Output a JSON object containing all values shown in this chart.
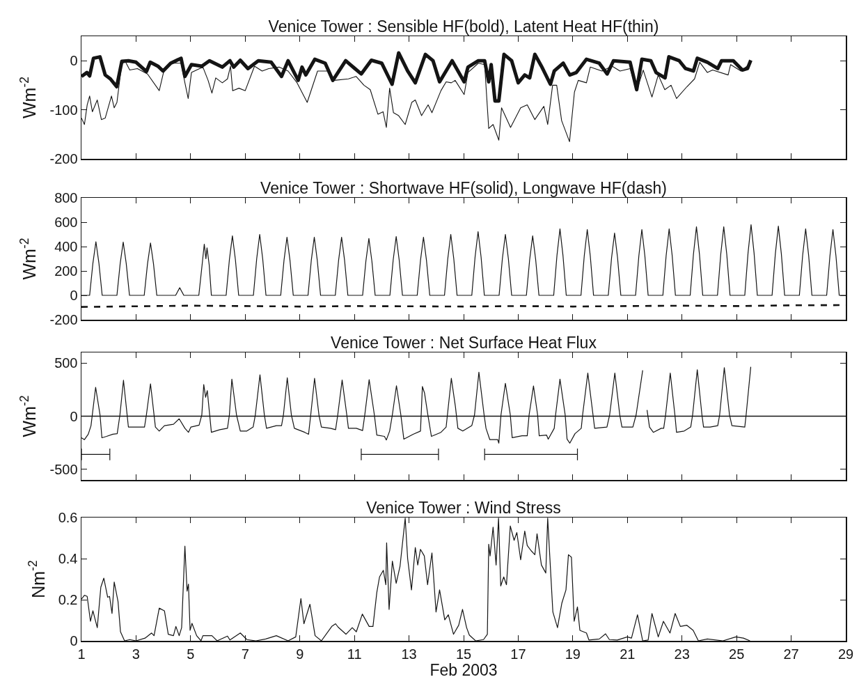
{
  "chart_data": [
    {
      "type": "line",
      "title": "Venice Tower : Sensible HF(bold), Latent Heat HF(thin)",
      "ylabel": "Wm$^{-2}$",
      "xlim": [
        1,
        29
      ],
      "xticks": [
        1,
        3,
        5,
        7,
        9,
        11,
        13,
        15,
        17,
        19,
        21,
        23,
        25,
        27,
        29
      ],
      "ylim": [
        -200,
        50
      ],
      "yticks": [
        -200,
        -100,
        0
      ],
      "grid": false,
      "tick_labels": "y",
      "series": [
        {
          "color": "#141414",
          "x": [
            1.0,
            1.2,
            1.3,
            1.44,
            1.68,
            1.87,
            2.06,
            2.29,
            2.48,
            2.72,
            3.0,
            3.38,
            3.52,
            3.8,
            3.99,
            4.27,
            4.65,
            4.79,
            5.03,
            5.41,
            5.69,
            6.16,
            6.44,
            6.58,
            6.82,
            7.1,
            7.48,
            7.95,
            8.33,
            8.57,
            8.94,
            9.08,
            9.22,
            9.55,
            9.93,
            10.21,
            10.68,
            11.25,
            11.62,
            12.0,
            12.38,
            12.62,
            12.95,
            13.23,
            13.6,
            13.88,
            14.12,
            14.58,
            15.02,
            15.16,
            15.54,
            15.77,
            15.92,
            16.01,
            16.15,
            16.29,
            16.48,
            16.76,
            17.0,
            17.24,
            17.42,
            17.61,
            17.85,
            18.18,
            18.32,
            18.65,
            18.89,
            19.13,
            19.5,
            19.97,
            20.26,
            20.49,
            21.1,
            21.34,
            21.53,
            21.86,
            22.05,
            22.38,
            22.52,
            22.9,
            23.13,
            23.42,
            23.56,
            23.93,
            24.31,
            24.45,
            24.88,
            25.21,
            25.4,
            25.52
          ],
          "values": [
            -32,
            -24,
            -31,
            5,
            8,
            -29,
            -37,
            -53,
            -1,
            0,
            -3,
            -22,
            -3,
            -11,
            -21,
            -5,
            5,
            -32,
            -8,
            -11,
            0,
            -13,
            0,
            -13,
            1,
            -16,
            0,
            -3,
            -32,
            0,
            -40,
            -13,
            -29,
            3,
            -5,
            -40,
            0,
            -27,
            1,
            -5,
            -48,
            16,
            -21,
            -45,
            13,
            0,
            -43,
            0,
            -43,
            -13,
            0,
            0,
            -43,
            -8,
            -82,
            -82,
            13,
            0,
            -45,
            -29,
            -35,
            13,
            -11,
            -48,
            -21,
            -5,
            -29,
            -24,
            3,
            -5,
            -27,
            0,
            -3,
            -59,
            3,
            0,
            -24,
            -35,
            8,
            0,
            -16,
            -21,
            5,
            -3,
            -16,
            0,
            0,
            -19,
            -16,
            1
          ]
        },
        {
          "color": "#141414",
          "x": [
            1.0,
            1.11,
            1.21,
            1.3,
            1.4,
            1.58,
            1.73,
            1.87,
            2.1,
            2.2,
            2.3,
            2.48,
            2.62,
            2.77,
            3.05,
            3.42,
            3.85,
            4.04,
            4.23,
            4.65,
            4.79,
            4.91,
            5.03,
            5.45,
            5.64,
            5.78,
            5.92,
            6.16,
            6.35,
            6.46,
            6.54,
            6.77,
            7.0,
            7.34,
            7.62,
            7.86,
            8.24,
            8.57,
            8.9,
            9.27,
            9.65,
            10.03,
            10.26,
            10.78,
            11.06,
            11.35,
            11.58,
            11.86,
            12.05,
            12.17,
            12.29,
            12.43,
            12.62,
            12.86,
            13.1,
            13.23,
            13.46,
            13.7,
            13.84,
            14.17,
            14.36,
            14.55,
            14.69,
            15.02,
            15.16,
            15.54,
            15.77,
            15.92,
            16.08,
            16.29,
            16.39,
            16.72,
            17.09,
            17.33,
            17.61,
            17.94,
            18.08,
            18.26,
            18.41,
            18.59,
            18.88,
            19.06,
            19.2,
            19.5,
            19.64,
            20.07,
            20.44,
            20.73,
            21.1,
            21.34,
            21.58,
            21.9,
            22.13,
            22.37,
            22.6,
            22.8,
            23.18,
            23.46,
            23.65,
            23.93,
            24.12,
            24.69,
            24.78,
            25.16,
            25.52
          ],
          "values": [
            -117,
            -130,
            -90,
            -72,
            -104,
            -80,
            -120,
            -117,
            -72,
            -96,
            -85,
            -5,
            -3,
            -19,
            -16,
            -27,
            -61,
            -16,
            -5,
            -5,
            -45,
            -77,
            -24,
            -13,
            -40,
            -66,
            -35,
            -45,
            -37,
            -11,
            -61,
            -56,
            -61,
            -11,
            -21,
            -16,
            -13,
            -21,
            -45,
            -85,
            -21,
            -21,
            -40,
            -37,
            -32,
            -50,
            -59,
            -109,
            -104,
            -136,
            -56,
            -106,
            -112,
            -130,
            -85,
            -80,
            -112,
            -90,
            -106,
            -61,
            -43,
            -45,
            -40,
            -69,
            -24,
            -5,
            -8,
            -138,
            -130,
            -162,
            -96,
            -136,
            -96,
            -90,
            -120,
            -93,
            -130,
            -50,
            -50,
            -122,
            -165,
            -64,
            -40,
            -45,
            -13,
            -21,
            -11,
            -21,
            -16,
            -61,
            -19,
            -74,
            -29,
            -59,
            -50,
            -77,
            -53,
            -37,
            -3,
            -24,
            -19,
            -29,
            -8,
            -21,
            -5
          ]
        }
      ]
    },
    {
      "type": "line",
      "title": "Venice Tower : Shortwave HF(solid), Longwave HF(dash)",
      "ylabel": "Wm$^{-2}$",
      "xlim": [
        1,
        29
      ],
      "xticks": [
        1,
        3,
        5,
        7,
        9,
        11,
        13,
        15,
        17,
        19,
        21,
        23,
        25,
        27,
        29
      ],
      "ylim": [
        -200,
        800
      ],
      "yticks": [
        -200,
        0,
        200,
        400,
        600,
        800
      ],
      "grid": false,
      "tick_labels": "y",
      "series": [
        {
          "color": "#141414",
          "line_style": "solid",
          "x": [
            1,
            1.3,
            1.42,
            1.53,
            1.64,
            1.76,
            2.3,
            2.42,
            2.53,
            2.64,
            2.76,
            3.3,
            3.42,
            3.53,
            3.64,
            3.76,
            4.45,
            4.6,
            4.75,
            5.3,
            5.42,
            5.5,
            5.56,
            5.6,
            5.68,
            5.76,
            6.3,
            6.42,
            6.53,
            6.64,
            6.76,
            7.3,
            7.42,
            7.53,
            7.64,
            7.76,
            8.3,
            8.42,
            8.53,
            8.64,
            8.76,
            9.3,
            9.42,
            9.53,
            9.64,
            9.76,
            10.3,
            10.42,
            10.53,
            10.64,
            10.76,
            11.3,
            11.42,
            11.53,
            11.64,
            11.76,
            12.3,
            12.42,
            12.53,
            12.64,
            12.76,
            13.3,
            13.42,
            13.53,
            13.64,
            13.76,
            14.3,
            14.42,
            14.53,
            14.64,
            14.76,
            15.3,
            15.42,
            15.53,
            15.64,
            15.76,
            16.3,
            16.42,
            16.53,
            16.64,
            16.76,
            17.3,
            17.42,
            17.53,
            17.64,
            17.76,
            18.3,
            18.42,
            18.53,
            18.64,
            18.76,
            19.3,
            19.42,
            19.53,
            19.64,
            19.76,
            20.3,
            20.42,
            20.53,
            20.64,
            20.76,
            21.3,
            21.42,
            21.53,
            21.64,
            21.76,
            22.3,
            22.42,
            22.53,
            22.64,
            22.76,
            23.3,
            23.42,
            23.53,
            23.64,
            23.76,
            24.3,
            24.42,
            24.53,
            24.64,
            24.76,
            25.3,
            25.42,
            25.53,
            25.64,
            25.76,
            26.3,
            26.42,
            26.53,
            26.64,
            26.76,
            27.3,
            27.42,
            27.53,
            27.64,
            27.76,
            28.3,
            28.42,
            28.53,
            28.64,
            28.76,
            29
          ],
          "values": [
            0,
            0,
            264,
            440,
            264,
            0,
            0,
            262,
            437,
            262,
            0,
            0,
            258,
            430,
            258,
            0,
            0,
            62,
            0,
            0,
            250,
            420,
            300,
            390,
            250,
            0,
            0,
            293,
            488,
            293,
            0,
            0,
            300,
            500,
            300,
            0,
            0,
            286,
            477,
            286,
            0,
            0,
            286,
            477,
            286,
            0,
            0,
            286,
            477,
            286,
            0,
            0,
            280,
            466,
            280,
            0,
            0,
            290,
            483,
            290,
            0,
            0,
            286,
            477,
            286,
            0,
            0,
            300,
            500,
            300,
            0,
            0,
            314,
            523,
            314,
            0,
            0,
            300,
            500,
            300,
            0,
            0,
            293,
            488,
            293,
            0,
            0,
            327,
            545,
            327,
            0,
            0,
            324,
            540,
            324,
            0,
            0,
            307,
            511,
            307,
            0,
            0,
            324,
            540,
            324,
            0,
            0,
            327,
            545,
            327,
            0,
            0,
            337,
            562,
            337,
            0,
            0,
            337,
            562,
            337,
            0,
            0,
            348,
            580,
            348,
            0,
            0,
            341,
            568,
            341,
            0,
            0,
            327,
            545,
            327,
            0,
            0,
            324,
            540,
            324,
            0,
            0
          ]
        },
        {
          "color": "#141414",
          "line_style": "dashed",
          "x": [
            1,
            3,
            5,
            7,
            9,
            11,
            13,
            15,
            17,
            19,
            21,
            23,
            25,
            27,
            29
          ],
          "values": [
            -95,
            -90,
            -85,
            -88,
            -92,
            -88,
            -90,
            -92,
            -88,
            -92,
            -88,
            -85,
            -88,
            -82,
            -80
          ]
        }
      ]
    },
    {
      "type": "line",
      "title": "Venice Tower : Net Surface Heat Flux",
      "ylabel": "Wm$^{-2}$",
      "xlim": [
        1,
        29
      ],
      "xticks": [
        1,
        3,
        5,
        7,
        9,
        11,
        13,
        15,
        17,
        19,
        21,
        23,
        25,
        27,
        29
      ],
      "ylim": [
        -600,
        600
      ],
      "yticks": [
        -500,
        0,
        500
      ],
      "grid": false,
      "tick_labels": "y",
      "ref_lines": [
        {
          "axis": "y",
          "value": 0,
          "color": "#141414"
        }
      ],
      "series": [
        {
          "color": "#141414",
          "x": [
            1.0,
            1.11,
            1.25,
            1.35,
            1.52,
            1.68,
            1.75,
            1.92,
            2.15,
            2.31,
            2.41,
            2.54,
            2.72,
            3.14,
            3.31,
            3.38,
            3.53,
            3.71,
            3.85,
            4.04,
            4.37,
            4.58,
            4.79,
            4.92,
            5.01,
            5.31,
            5.41,
            5.48,
            5.55,
            5.61,
            5.76,
            6.07,
            6.35,
            6.42,
            6.51,
            6.68,
            6.82,
            7.06,
            7.29,
            7.37,
            7.54,
            7.7,
            7.78,
            8.14,
            8.33,
            8.4,
            8.54,
            8.69,
            8.8,
            9.18,
            9.32,
            9.4,
            9.54,
            9.7,
            9.79,
            10.12,
            10.31,
            10.39,
            10.55,
            10.72,
            10.78,
            11.07,
            11.3,
            11.38,
            11.54,
            11.73,
            11.82,
            12.1,
            12.17,
            12.29,
            12.39,
            12.54,
            12.7,
            12.81,
            13.15,
            13.42,
            13.49,
            13.57,
            13.69,
            13.82,
            14.17,
            14.36,
            14.55,
            14.7,
            14.79,
            14.97,
            15.3,
            15.4,
            15.56,
            15.75,
            15.82,
            15.96,
            16.25,
            16.29,
            16.37,
            16.53,
            16.71,
            16.78,
            17.14,
            17.33,
            17.4,
            17.56,
            17.71,
            17.77,
            18.04,
            18.1,
            18.32,
            18.37,
            18.53,
            18.72,
            18.79,
            18.89,
            19.08,
            19.31,
            19.36,
            19.55,
            19.74,
            19.8,
            20.25,
            20.35,
            20.54,
            20.72,
            20.8,
            21.2,
            21.32,
            21.56,
            21.64,
            21.72,
            21.81,
            21.95,
            22.24,
            22.33,
            22.4,
            22.57,
            22.74,
            22.8,
            23.08,
            23.32,
            23.39,
            23.56,
            23.73,
            23.79,
            24.03,
            24.31,
            24.38,
            24.55,
            24.74,
            24.83,
            25.3,
            25.35,
            25.52
          ],
          "values": [
            -203,
            -221,
            -170,
            -89,
            272,
            13,
            -203,
            -190,
            -170,
            -165,
            13,
            338,
            -102,
            -102,
            -102,
            13,
            305,
            -102,
            -140,
            -89,
            -76,
            -25,
            -114,
            -152,
            -102,
            -84,
            13,
            297,
            178,
            241,
            -152,
            -127,
            -114,
            13,
            348,
            13,
            -140,
            -140,
            -102,
            13,
            389,
            13,
            -114,
            -89,
            -89,
            13,
            361,
            13,
            -114,
            -152,
            -170,
            13,
            356,
            13,
            -102,
            -114,
            -127,
            13,
            340,
            13,
            -114,
            -114,
            -135,
            13,
            343,
            13,
            -178,
            -190,
            -224,
            -140,
            13,
            287,
            13,
            -216,
            -170,
            -140,
            279,
            216,
            13,
            -190,
            -152,
            -102,
            356,
            89,
            -114,
            -140,
            -89,
            13,
            414,
            13,
            -114,
            -221,
            -221,
            -254,
            13,
            310,
            13,
            -203,
            -185,
            -185,
            13,
            284,
            13,
            -185,
            -178,
            -216,
            -114,
            13,
            348,
            13,
            -216,
            -254,
            -165,
            -114,
            13,
            406,
            13,
            -114,
            -102,
            13,
            406,
            13,
            -102,
            -102,
            13,
            432,
            null,
            58,
            -102,
            -152,
            -114,
            -114,
            13,
            406,
            13,
            -152,
            -140,
            -102,
            13,
            437,
            13,
            -102,
            -102,
            -89,
            13,
            457,
            13,
            -89,
            -102,
            13,
            465
          ]
        },
        {
          "color": "#141414",
          "x": [
            1.0,
            2.04
          ],
          "values": [
            -360,
            -360
          ]
        },
        {
          "color": "#141414",
          "x": [
            11.25,
            14.08
          ],
          "values": [
            -360,
            -360
          ]
        },
        {
          "color": "#141414",
          "x": [
            15.77,
            19.17
          ],
          "values": [
            -360,
            -360
          ]
        }
      ]
    },
    {
      "type": "line",
      "title": "Venice Tower : Wind Stress",
      "ylabel": "Nm$^{-2}$",
      "xlabel": "Feb 2003",
      "xlim": [
        1,
        29
      ],
      "xticks": [
        1,
        3,
        5,
        7,
        9,
        11,
        13,
        15,
        17,
        19,
        21,
        23,
        25,
        27,
        29
      ],
      "ylim": [
        0,
        0.6
      ],
      "yticks": [
        0,
        0.2,
        0.4,
        0.6
      ],
      "grid": false,
      "series": [
        {
          "color": "#141414",
          "x": [
            1.0,
            1.11,
            1.21,
            1.33,
            1.42,
            1.58,
            1.71,
            1.82,
            1.96,
            2.03,
            2.12,
            2.2,
            2.34,
            2.43,
            2.58,
            2.77,
            3.0,
            3.33,
            3.57,
            3.66,
            3.85,
            4.04,
            4.18,
            4.37,
            4.46,
            4.58,
            4.67,
            4.79,
            4.87,
            4.92,
            4.98,
            5.05,
            5.22,
            5.38,
            5.45,
            5.78,
            5.97,
            6.35,
            6.44,
            6.82,
            7.06,
            7.39,
            7.75,
            8.14,
            8.57,
            8.85,
            9.04,
            9.15,
            9.37,
            9.56,
            9.79,
            10.17,
            10.31,
            10.4,
            10.69,
            10.92,
            11.07,
            11.29,
            11.54,
            11.68,
            11.82,
            11.92,
            12.06,
            12.15,
            12.18,
            12.27,
            12.39,
            12.53,
            12.67,
            12.86,
            12.95,
            13.09,
            13.23,
            13.32,
            13.42,
            13.56,
            13.68,
            13.84,
            13.99,
            14.12,
            14.31,
            14.44,
            14.63,
            14.82,
            14.96,
            15.11,
            15.21,
            15.44,
            15.73,
            15.87,
            15.92,
            15.97,
            16.08,
            16.19,
            16.28,
            16.36,
            16.47,
            16.57,
            16.71,
            16.85,
            16.95,
            17.09,
            17.24,
            17.33,
            17.47,
            17.61,
            17.69,
            17.85,
            18.01,
            18.08,
            18.27,
            18.44,
            18.6,
            18.75,
            18.84,
            18.95,
            19.05,
            19.17,
            19.26,
            19.5,
            19.59,
            19.97,
            20.2,
            20.34,
            20.63,
            21.0,
            21.15,
            21.37,
            21.56,
            21.76,
            21.9,
            22.13,
            22.32,
            22.56,
            22.75,
            22.94,
            23.17,
            23.41,
            23.6,
            23.93,
            24.5,
            24.97,
            25.25,
            25.49
          ],
          "values": [
            0.203,
            0.222,
            0.216,
            0.095,
            0.146,
            0.064,
            0.261,
            0.305,
            0.212,
            0.216,
            0.133,
            0.286,
            0.191,
            0.044,
            0,
            0.006,
            0,
            0.013,
            0.038,
            0.025,
            0.159,
            0.146,
            0.032,
            0.025,
            0.07,
            0.025,
            0.064,
            0.461,
            0.242,
            0.276,
            0.051,
            0.085,
            0.025,
            0,
            0.025,
            0.025,
            0,
            0.023,
            0.004,
            0.038,
            0.006,
            0,
            0.009,
            0.025,
            0,
            0.019,
            0.206,
            0.083,
            0.178,
            0.025,
            0,
            0.07,
            0.083,
            0.067,
            0.032,
            0.064,
            0.044,
            0.13,
            0.07,
            0.07,
            0.235,
            0.311,
            0.343,
            0.273,
            0.477,
            0.153,
            0.388,
            0.28,
            0.362,
            0.597,
            0.4,
            0.248,
            0.454,
            0.369,
            0.445,
            0.413,
            0.273,
            0.428,
            0.14,
            0.248,
            0.102,
            0.127,
            0.032,
            0.076,
            0.153,
            0.064,
            0.028,
            0,
            0.006,
            0.032,
            0.47,
            0.413,
            0.553,
            0.369,
            0.597,
            0.267,
            0.311,
            0.273,
            0.559,
            0.489,
            0.527,
            0.394,
            0.534,
            0.464,
            0.439,
            0.419,
            0.521,
            0.369,
            0.33,
            0.597,
            0.14,
            0.064,
            0.184,
            0.248,
            0.419,
            0.407,
            0.095,
            0.165,
            0.051,
            0.038,
            0.004,
            0.009,
            0.034,
            0.006,
            0.004,
            0.019,
            0.013,
            0.127,
            0,
            0.004,
            0.133,
            0.019,
            0.095,
            0.038,
            0.133,
            0.07,
            0.076,
            0.051,
            0,
            0.009,
            0,
            0.019,
            0.013,
            0
          ]
        }
      ]
    }
  ]
}
